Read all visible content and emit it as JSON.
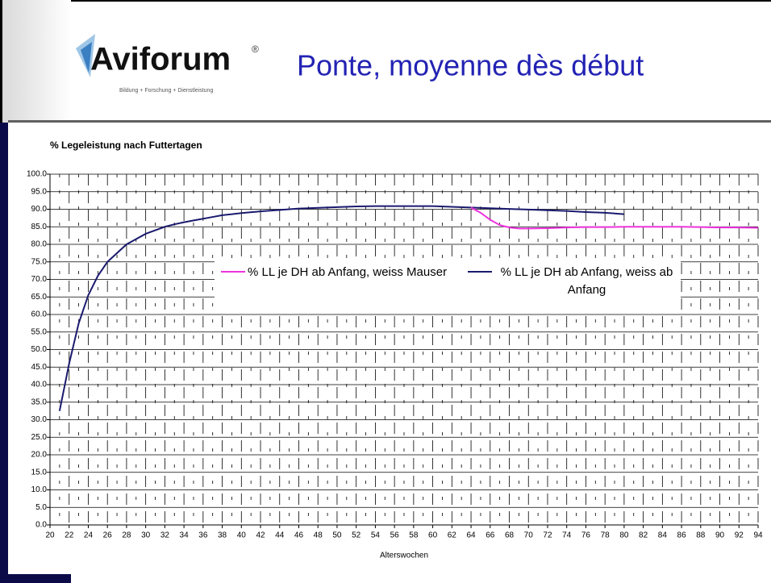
{
  "header": {
    "logo": "Aviforum",
    "logo_mark": "®",
    "logo_tagline": "Bildung + Forschung + Dienstleistung",
    "title": "Ponte, moyenne dès début"
  },
  "chart_data": {
    "type": "line",
    "title": "% Legeleistung nach Futtertagen",
    "x_label": "Alterswochen",
    "xlim": [
      20,
      94
    ],
    "ylim": [
      0,
      100
    ],
    "xticks": [
      20,
      22,
      24,
      26,
      28,
      30,
      32,
      34,
      36,
      38,
      40,
      42,
      44,
      46,
      48,
      50,
      52,
      54,
      56,
      58,
      60,
      62,
      64,
      66,
      68,
      70,
      72,
      74,
      76,
      78,
      80,
      82,
      84,
      86,
      88,
      90,
      92,
      94
    ],
    "xminorticks": [
      21,
      23,
      25,
      27,
      29,
      31,
      33,
      35,
      37,
      39,
      41,
      43,
      45,
      47,
      49,
      51,
      53,
      55,
      57,
      59,
      61,
      63,
      65,
      67,
      69,
      71,
      73,
      75,
      77,
      79,
      81,
      83,
      85,
      87,
      89,
      91,
      93
    ],
    "yticks": [
      {
        "value": 0,
        "label": "0.0"
      },
      {
        "value": 5,
        "label": "5.0"
      },
      {
        "value": 10,
        "label": "10.0"
      },
      {
        "value": 15,
        "label": "15.0"
      },
      {
        "value": 20,
        "label": "20.0"
      },
      {
        "value": 25,
        "label": "25.0"
      },
      {
        "value": 30,
        "label": "30.0"
      },
      {
        "value": 35,
        "label": "35.0"
      },
      {
        "value": 40,
        "label": "40.0"
      },
      {
        "value": 45,
        "label": "45.0"
      },
      {
        "value": 50,
        "label": "50.0"
      },
      {
        "value": 55,
        "label": "55.0"
      },
      {
        "value": 60,
        "label": "60.0"
      },
      {
        "value": 65,
        "label": "65.0"
      },
      {
        "value": 70,
        "label": "70.0"
      },
      {
        "value": 75,
        "label": "75.0"
      },
      {
        "value": 80,
        "label": "80.0"
      },
      {
        "value": 85,
        "label": "85.0"
      },
      {
        "value": 90,
        "label": "90.0"
      },
      {
        "value": 95,
        "label": "95.0"
      },
      {
        "value": 100,
        "label": "100.0"
      }
    ],
    "grid": true,
    "series": [
      {
        "name": "% LL je DH ab Anfang, weiss Mauser",
        "color": "#ee33dd",
        "x": [
          64,
          65,
          66,
          67,
          68,
          69,
          70,
          72,
          74,
          76,
          78,
          80,
          82,
          84,
          86,
          88,
          90,
          92,
          94
        ],
        "values": [
          90.5,
          89,
          87,
          85.5,
          84.8,
          84.5,
          84.5,
          84.6,
          84.8,
          84.9,
          84.9,
          85,
          85,
          85,
          85,
          84.9,
          84.8,
          84.8,
          84.7
        ]
      },
      {
        "name": "% LL je DH ab Anfang, weiss ab Anfang",
        "color": "#1a1a6e",
        "x": [
          21,
          22,
          23,
          24,
          25,
          26,
          27,
          28,
          29,
          30,
          31,
          32,
          33,
          34,
          35,
          36,
          37,
          38,
          39,
          40,
          42,
          44,
          46,
          48,
          50,
          52,
          54,
          56,
          58,
          60,
          62,
          64,
          66,
          68,
          70,
          72,
          74,
          76,
          78,
          80
        ],
        "values": [
          32.5,
          46,
          57.5,
          65.5,
          71,
          75,
          77.5,
          80,
          81.5,
          83,
          84,
          85,
          85.7,
          86.3,
          86.8,
          87.3,
          87.8,
          88.3,
          88.6,
          88.9,
          89.4,
          89.8,
          90.2,
          90.4,
          90.6,
          90.8,
          90.9,
          90.9,
          90.9,
          90.9,
          90.7,
          90.5,
          90.3,
          90.1,
          89.9,
          89.7,
          89.5,
          89.2,
          89,
          88.6
        ]
      }
    ]
  }
}
